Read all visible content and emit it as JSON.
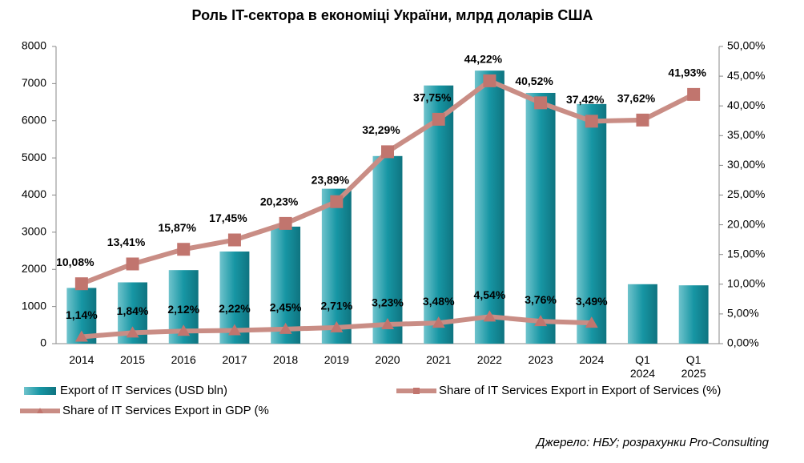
{
  "chart_data": {
    "type": "bar_line",
    "title": "Роль IT-сектора в економіці України, млрд доларів США",
    "categories": [
      "2014",
      "2015",
      "2016",
      "2017",
      "2018",
      "2019",
      "2020",
      "2021",
      "2022",
      "2023",
      "2024",
      "Q1 2024",
      "Q1 2025"
    ],
    "series": [
      {
        "name": "Export of IT Services (USD bln)",
        "color": "#1796a4",
        "type": "bar",
        "values": [
          1500,
          1650,
          1980,
          2480,
          3150,
          4170,
          5050,
          6950,
          7350,
          6750,
          6450,
          1600,
          1570
        ]
      },
      {
        "name": "Share of IT Services Export in Export of Services (%)",
        "color": "#c98d85",
        "type": "line",
        "marker": "square",
        "axis": "y2",
        "values": [
          10.08,
          13.41,
          15.87,
          17.45,
          20.23,
          23.89,
          32.29,
          37.75,
          44.22,
          40.52,
          37.42,
          37.62,
          41.93
        ],
        "value_labels": [
          "10,08%",
          "13,41%",
          "15,87%",
          "17,45%",
          "20,23%",
          "23,89%",
          "32,29%",
          "37,75%",
          "44,22%",
          "40,52%",
          "37,42%",
          "37,62%",
          "41,93%"
        ]
      },
      {
        "name": "Share of IT Services Export in GDP (%",
        "color": "#c98d85",
        "type": "line",
        "marker": "triangle",
        "axis": "y2",
        "values": [
          1.14,
          1.84,
          2.12,
          2.22,
          2.45,
          2.71,
          3.23,
          3.48,
          4.54,
          3.76,
          3.49,
          null,
          null
        ],
        "value_labels": [
          "1,14%",
          "1,84%",
          "2,12%",
          "2,22%",
          "2,45%",
          "2,71%",
          "3,23%",
          "3,48%",
          "4,54%",
          "3,76%",
          "3,49%",
          null,
          null
        ]
      }
    ],
    "ylim": [
      0,
      8000
    ],
    "yticks": [
      0,
      1000,
      2000,
      3000,
      4000,
      5000,
      6000,
      7000,
      8000
    ],
    "y2lim": [
      0,
      50
    ],
    "y2ticks": [
      {
        "value": 0,
        "label": "0,00%"
      },
      {
        "value": 5,
        "label": "5,00%"
      },
      {
        "value": 10,
        "label": "10,00%"
      },
      {
        "value": 15,
        "label": "15,00%"
      },
      {
        "value": 20,
        "label": "20,00%"
      },
      {
        "value": 25,
        "label": "25,00%"
      },
      {
        "value": 30,
        "label": "30,00%"
      },
      {
        "value": 35,
        "label": "35,00%"
      },
      {
        "value": 40,
        "label": "40,00%"
      },
      {
        "value": 45,
        "label": "45,00%"
      },
      {
        "value": 50,
        "label": "50,00%"
      }
    ],
    "source": "Джерело: НБУ; розрахунки Pro-Consulting"
  }
}
